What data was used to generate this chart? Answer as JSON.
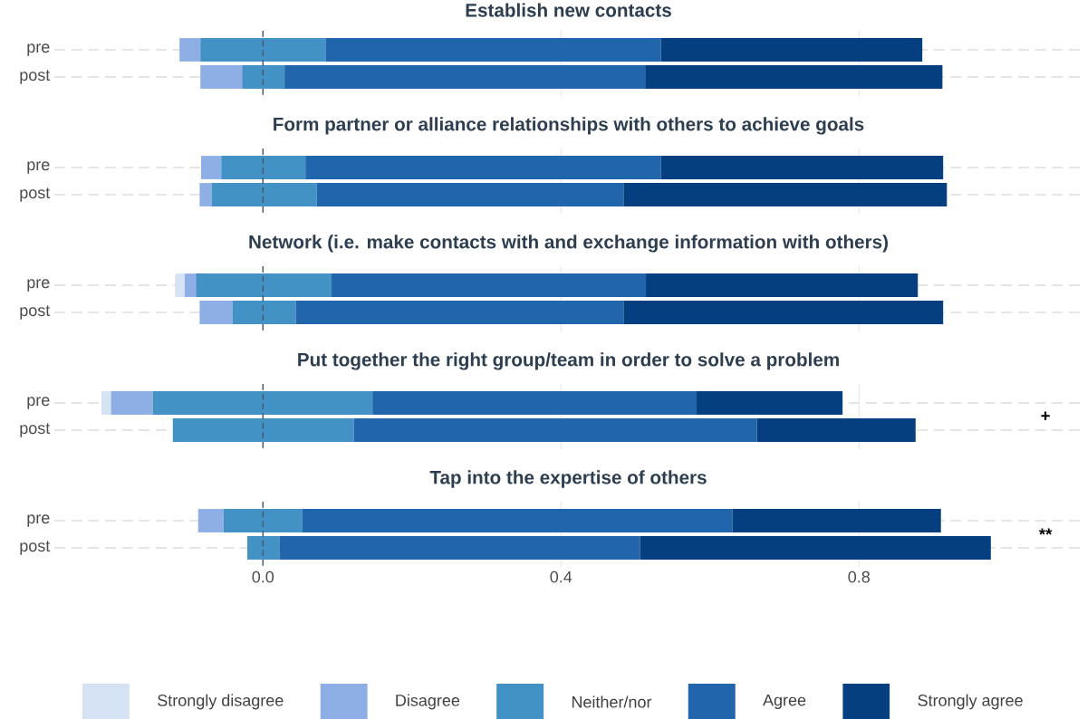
{
  "chart_data": [
    {
      "type": "bar",
      "orientation": "horizontal",
      "title": "Establish new contacts",
      "categories": [
        "pre",
        "post"
      ],
      "series": [
        {
          "color": "#d6e3f5",
          "base": [
            null,
            null
          ],
          "values": [
            null,
            null
          ]
        },
        {
          "color": "#8eaee6",
          "base": [
            -0.112,
            -0.084
          ],
          "values": [
            0.028,
            0.056
          ]
        },
        {
          "color": "#4292c6",
          "base": [
            -0.084,
            -0.028
          ],
          "values": [
            0.168,
            0.057
          ]
        },
        {
          "color": "#2166ac",
          "base": [
            0.084,
            0.029
          ],
          "values": [
            0.45,
            0.484
          ]
        },
        {
          "color": "#063f7f",
          "base": [
            0.534,
            0.513
          ],
          "values": [
            0.351,
            0.399
          ]
        }
      ],
      "xlim": [
        -0.28,
        1.1
      ],
      "xticks": [
        0,
        0.4,
        0.8
      ],
      "grid": true,
      "tick_labels": "y",
      "ref_lines": [
        {
          "axis": "x",
          "value": 0,
          "line_style": "dashed",
          "color": "#4a5a6a"
        }
      ]
    },
    {
      "type": "bar",
      "orientation": "horizontal",
      "title": "Form partner or alliance relationships with others to achieve goals",
      "categories": [
        "pre",
        "post"
      ],
      "series": [
        {
          "color": "#d6e3f5",
          "base": [
            null,
            null
          ],
          "values": [
            null,
            null
          ]
        },
        {
          "color": "#8eaee6",
          "base": [
            -0.083,
            -0.085
          ],
          "values": [
            0.027,
            0.016
          ]
        },
        {
          "color": "#4292c6",
          "base": [
            -0.056,
            -0.069
          ],
          "values": [
            0.113,
            0.141
          ]
        },
        {
          "color": "#2166ac",
          "base": [
            0.057,
            0.072
          ],
          "values": [
            0.477,
            0.412
          ]
        },
        {
          "color": "#063f7f",
          "base": [
            0.534,
            0.484
          ],
          "values": [
            0.379,
            0.434
          ]
        }
      ],
      "xlim": [
        -0.28,
        1.1
      ],
      "xticks": [
        0,
        0.4,
        0.8
      ],
      "grid": true,
      "tick_labels": "y",
      "ref_lines": [
        {
          "axis": "x",
          "value": 0,
          "line_style": "dashed",
          "color": "#4a5a6a"
        }
      ]
    },
    {
      "type": "bar",
      "orientation": "horizontal",
      "title": "Network (i.e. make contacts with and exchange information with others)",
      "categories": [
        "pre",
        "post"
      ],
      "series": [
        {
          "color": "#d6e3f5",
          "base": [
            -0.118,
            null
          ],
          "values": [
            0.013,
            null
          ]
        },
        {
          "color": "#8eaee6",
          "base": [
            -0.105,
            -0.085
          ],
          "values": [
            0.015,
            0.044
          ]
        },
        {
          "color": "#4292c6",
          "base": [
            -0.09,
            -0.041
          ],
          "values": [
            0.182,
            0.085
          ]
        },
        {
          "color": "#2166ac",
          "base": [
            0.092,
            0.044
          ],
          "values": [
            0.422,
            0.44
          ]
        },
        {
          "color": "#063f7f",
          "base": [
            0.514,
            0.484
          ],
          "values": [
            0.365,
            0.429
          ]
        }
      ],
      "xlim": [
        -0.28,
        1.1
      ],
      "xticks": [
        0,
        0.4,
        0.8
      ],
      "grid": true,
      "tick_labels": "y",
      "ref_lines": [
        {
          "axis": "x",
          "value": 0,
          "line_style": "dashed",
          "color": "#4a5a6a"
        }
      ]
    },
    {
      "type": "bar",
      "orientation": "horizontal",
      "title": "Put together the right group/team in order to solve a problem",
      "categories": [
        "pre",
        "post"
      ],
      "series": [
        {
          "color": "#d6e3f5",
          "base": [
            -0.217,
            null
          ],
          "values": [
            0.013,
            null
          ]
        },
        {
          "color": "#8eaee6",
          "base": [
            -0.204,
            null
          ],
          "values": [
            0.056,
            null
          ]
        },
        {
          "color": "#4292c6",
          "base": [
            -0.148,
            -0.121
          ],
          "values": [
            0.295,
            0.243
          ]
        },
        {
          "color": "#2166ac",
          "base": [
            0.147,
            0.122
          ],
          "values": [
            0.435,
            0.541
          ]
        },
        {
          "color": "#063f7f",
          "base": [
            0.582,
            0.663
          ],
          "values": [
            0.196,
            0.213
          ]
        }
      ],
      "xlim": [
        -0.28,
        1.1
      ],
      "xticks": [
        0,
        0.4,
        0.8
      ],
      "grid": true,
      "tick_labels": "y",
      "ref_lines": [
        {
          "axis": "x",
          "value": 0,
          "line_style": "dashed",
          "color": "#4a5a6a"
        }
      ],
      "annotations": [
        "+"
      ]
    },
    {
      "type": "bar",
      "orientation": "horizontal",
      "title": "Tap into the expertise of others",
      "categories": [
        "pre",
        "post"
      ],
      "series": [
        {
          "name": "Strongly disagree",
          "color": "#d6e3f5",
          "base": [
            null,
            null
          ],
          "values": [
            null,
            null
          ]
        },
        {
          "name": "Disagree",
          "color": "#8eaee6",
          "base": [
            -0.087,
            null
          ],
          "values": [
            0.034,
            null
          ]
        },
        {
          "name": "Neither/nor",
          "color": "#4292c6",
          "base": [
            -0.053,
            -0.021
          ],
          "values": [
            0.106,
            0.043
          ]
        },
        {
          "name": "Agree",
          "color": "#2166ac",
          "base": [
            0.053,
            0.022
          ],
          "values": [
            0.577,
            0.484
          ]
        },
        {
          "name": "Strongly agree",
          "color": "#063f7f",
          "base": [
            0.63,
            0.506
          ],
          "values": [
            0.28,
            0.471
          ]
        }
      ],
      "xlim": [
        -0.28,
        1.1
      ],
      "xticks": [
        {
          "value": 0,
          "label": "0.0"
        },
        {
          "value": 0.4,
          "label": "0.4"
        },
        {
          "value": 0.8,
          "label": "0.8"
        }
      ],
      "grid": true,
      "legend": "bottom",
      "ref_lines": [
        {
          "axis": "x",
          "value": 0,
          "line_style": "dashed",
          "color": "#4a5a6a"
        }
      ],
      "annotations": [
        "**"
      ]
    }
  ]
}
